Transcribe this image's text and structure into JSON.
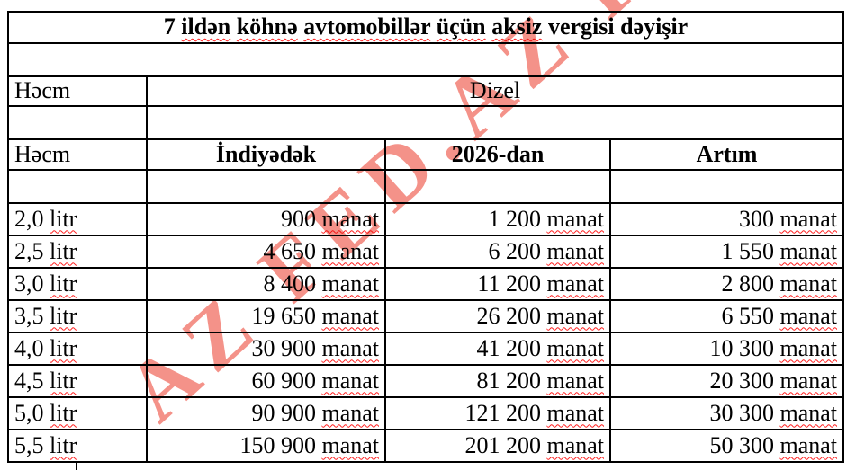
{
  "title": "7 ildən köhnə avtomobillər üçün aksiz vergisi dəyişir",
  "watermark": {
    "text": "AZ FED.AZ FED",
    "color": "#f2766b"
  },
  "misspelled_words": [
    "ildən",
    "köhnə",
    "avtomobillər",
    "üçün",
    "aksiz",
    "litr",
    "manat"
  ],
  "table": {
    "group_col_label": "Həcm",
    "group_header": "Dizel",
    "columns": [
      "Həcm",
      "İndiyədək",
      "2026-dan",
      "Artım"
    ],
    "rows": [
      [
        "2,0 litr",
        "900 manat",
        "1 200 manat",
        "300 manat"
      ],
      [
        "2,5 litr",
        "4 650 manat",
        "6 200 manat",
        "1 550 manat"
      ],
      [
        "3,0 litr",
        "8 400 manat",
        "11 200 manat",
        "2 800 manat"
      ],
      [
        "3,5 litr",
        "19 650 manat",
        "26 200 manat",
        "6 550 manat"
      ],
      [
        "4,0 litr",
        "30 900 manat",
        "41 200 manat",
        "10 300 manat"
      ],
      [
        "4,5 litr",
        "60 900 manat",
        "81 200 manat",
        "20 300 manat"
      ],
      [
        "5,0 litr",
        "90 900 manat",
        "121 200 manat",
        "30 300 manat"
      ],
      [
        "5,5 litr",
        "150 900 manat",
        "201 200 manat",
        "50 300 manat"
      ]
    ]
  },
  "colors": {
    "border": "#000000",
    "text": "#000000",
    "background": "#ffffff",
    "squiggle": "#ff1f1f",
    "watermark": "#f2766b"
  }
}
